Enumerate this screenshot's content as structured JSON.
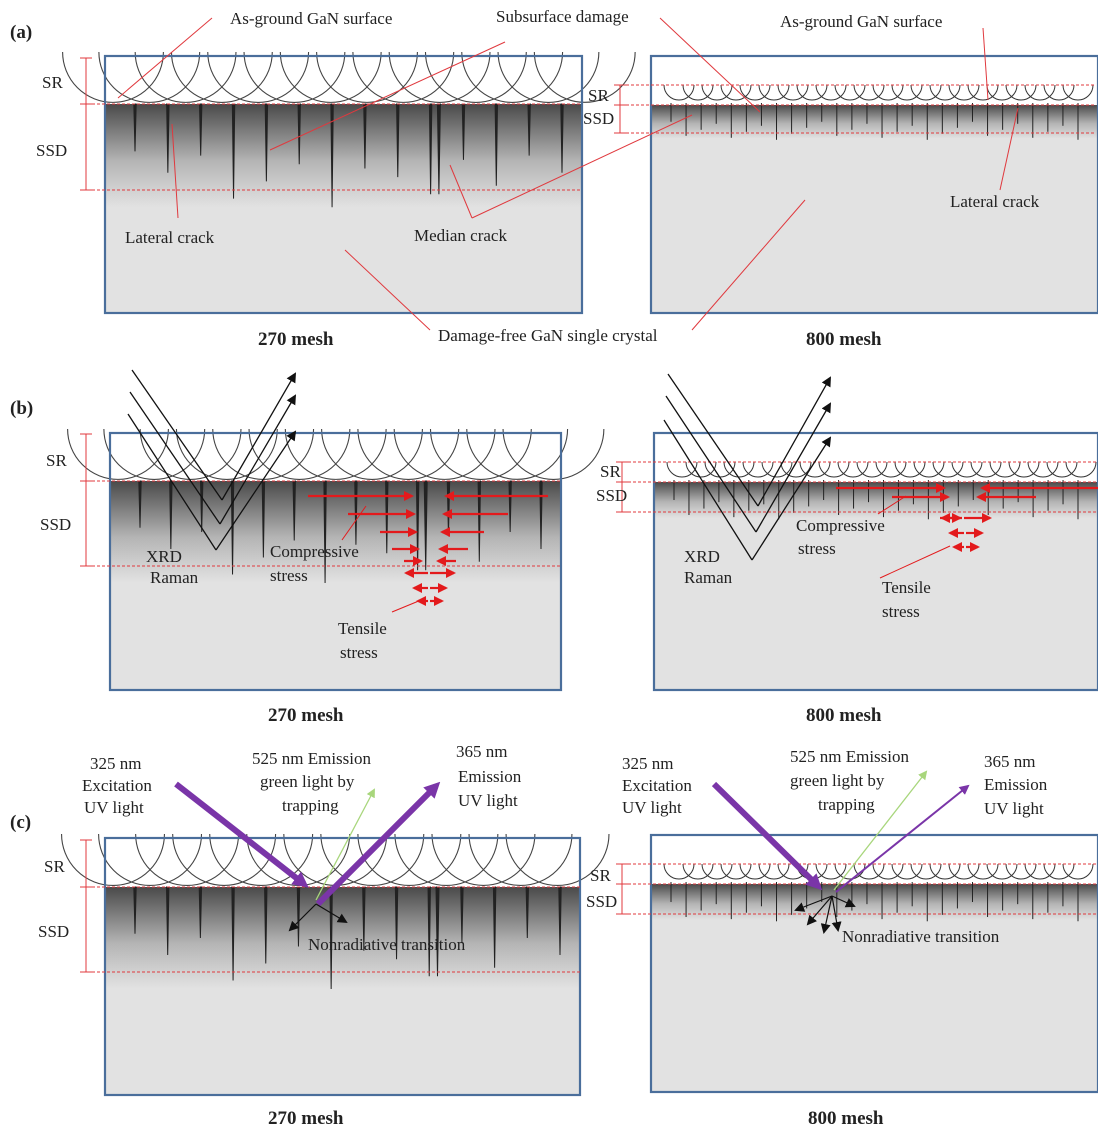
{
  "panels": {
    "a": {
      "letter": "(a)",
      "left_mesh": "270 mesh",
      "right_mesh": "800 mesh",
      "sr": "SR",
      "ssd": "SSD",
      "as_ground_left": "As-ground GaN surface",
      "as_ground_right": "As-ground GaN surface",
      "subsurface_damage": "Subsurface damage",
      "lateral_crack_left": "Lateral crack",
      "lateral_crack_right": "Lateral crack",
      "median_crack": "Median crack",
      "damage_free": "Damage-free GaN single crystal"
    },
    "b": {
      "letter": "(b)",
      "left_mesh": "270 mesh",
      "right_mesh": "800 mesh",
      "sr": "SR",
      "ssd": "SSD",
      "xrd": "XRD",
      "raman": "Raman",
      "compressive_1": "Compressive",
      "compressive_2": "stress",
      "tensile_1": "Tensile",
      "tensile_2": "stress"
    },
    "c": {
      "letter": "(c)",
      "left_mesh": "270 mesh",
      "right_mesh": "800 mesh",
      "sr": "SR",
      "ssd": "SSD",
      "exc_1": "325 nm",
      "exc_2": "Excitation",
      "exc_3": "UV light",
      "green_1": "525 nm Emission",
      "green_2": "green light by",
      "green_3": "trapping",
      "uv_1": "365 nm",
      "uv_2": "Emission",
      "uv_3": "UV light",
      "nonrad": "Nonradiative transition"
    }
  },
  "colors": {
    "box_border": "#4a6e9b",
    "crystal_gray": "#e2e2e2",
    "guide_red": "#e0393e",
    "stress_red": "#e31a1c",
    "uv_purple": "#7a35a8",
    "green_light": "#a8d67c"
  }
}
